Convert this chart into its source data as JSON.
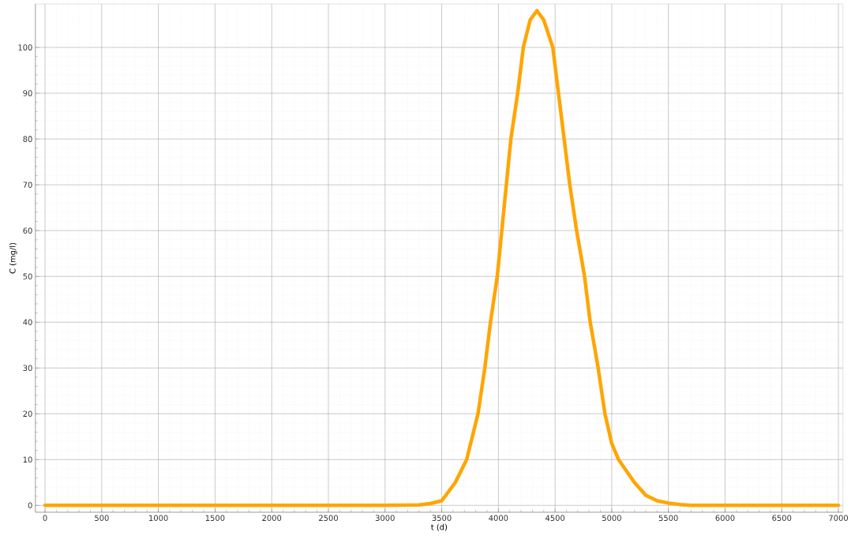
{
  "chart_data": {
    "type": "line",
    "xlabel": "t (d)",
    "ylabel": "C (mg/l)",
    "x": [
      0,
      3000,
      3300,
      3400,
      3500,
      3620,
      3720,
      3820,
      3880,
      3930,
      3990,
      4030,
      4070,
      4110,
      4170,
      4220,
      4280,
      4340,
      4400,
      4480,
      4530,
      4580,
      4630,
      4690,
      4760,
      4810,
      4880,
      4940,
      5000,
      5060,
      5200,
      5300,
      5400,
      5500,
      5600,
      5700,
      7000
    ],
    "series": [
      {
        "color": "#ffa500",
        "values": [
          0,
          0,
          0.1,
          0.4,
          1,
          5,
          10,
          20,
          30,
          40,
          50,
          60,
          70,
          80,
          90,
          100,
          106,
          108,
          106,
          100,
          90,
          80,
          70,
          60,
          50,
          40,
          30,
          20,
          13.5,
          10,
          5,
          2.2,
          1,
          0.5,
          0.2,
          0,
          0
        ]
      }
    ],
    "xlim": [
      -85,
      7040
    ],
    "ylim": [
      -1.5,
      109.5
    ],
    "xticks": [
      0,
      500,
      1000,
      1500,
      2000,
      2500,
      3000,
      3500,
      4000,
      4500,
      5000,
      5500,
      6000,
      6500,
      7000
    ],
    "yticks": [
      0,
      10,
      20,
      30,
      40,
      50,
      60,
      70,
      80,
      90,
      100
    ],
    "grid": true,
    "marker": "none",
    "line_style": "solid"
  }
}
